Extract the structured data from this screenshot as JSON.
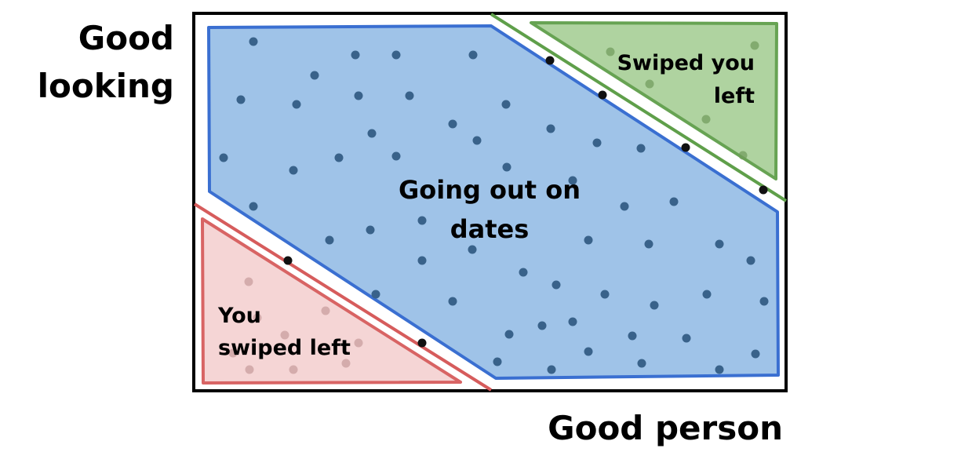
{
  "axes": {
    "y_label_lines": [
      "Good",
      "looking"
    ],
    "x_label": "Good person"
  },
  "regions": {
    "dates": {
      "label_lines": [
        "Going out on",
        "dates"
      ],
      "fill": "#9fc3e8",
      "stroke": "#3a6fd1"
    },
    "swiped_you_left": {
      "label_lines": [
        "Swiped you",
        "left"
      ],
      "fill": "#abd19b",
      "stroke": "#5f9f4a"
    },
    "you_swiped_left": {
      "label_lines": [
        "You",
        "swiped left"
      ],
      "fill": "#f5d3d3",
      "stroke": "#d65c5c"
    }
  },
  "colors": {
    "frame": "#000000",
    "dot": "#39628a"
  }
}
